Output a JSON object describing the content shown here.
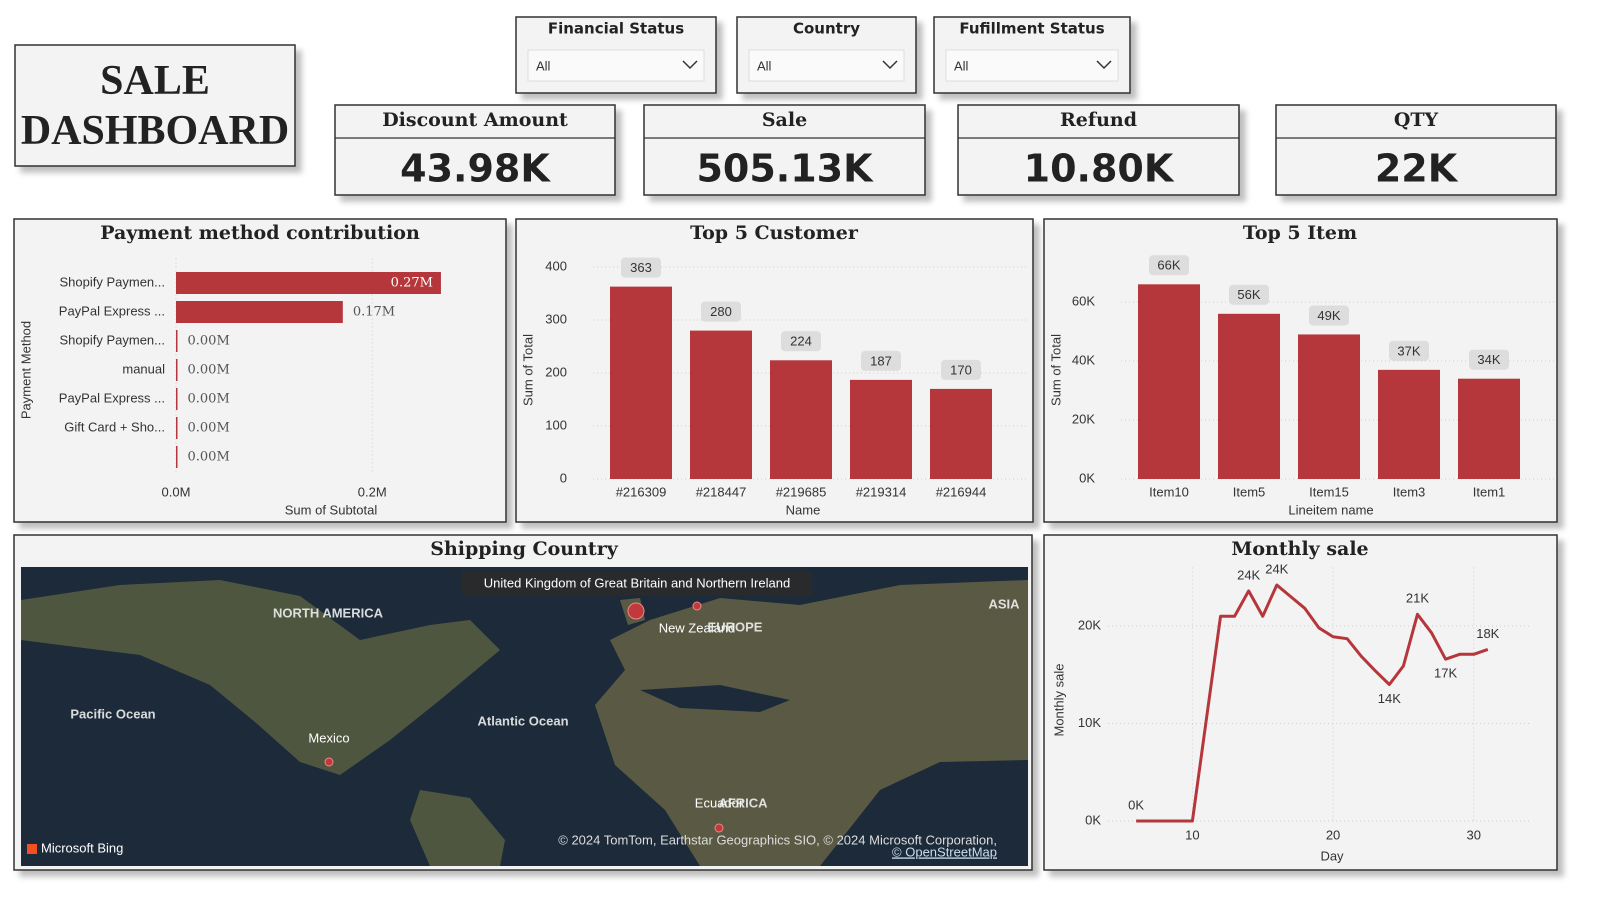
{
  "header": {
    "title": "SALE DASHBOARD"
  },
  "filters": [
    {
      "label": "Financial Status",
      "value": "All"
    },
    {
      "label": "Country",
      "value": "All"
    },
    {
      "label": "Fufillment Status",
      "value": "All"
    }
  ],
  "kpis": [
    {
      "label": "Discount Amount",
      "value": "43.98K"
    },
    {
      "label": "Sale",
      "value": "505.13K"
    },
    {
      "label": "Refund",
      "value": "10.80K"
    },
    {
      "label": "QTY",
      "value": "22K"
    }
  ],
  "map": {
    "title": "Shipping Country",
    "locations": [
      "United Kingdom of Great Britain and Northern Ireland",
      "New Zealand",
      "Mexico",
      "Ecuador"
    ],
    "region_labels": [
      "NORTH AMERICA",
      "EUROPE",
      "ASIA",
      "Pacific Ocean",
      "Atlantic Ocean",
      "AFRICA"
    ],
    "logo": "Microsoft Bing",
    "attribution": "© 2024 TomTom, Earthstar Geographics SIO, © 2024 Microsoft Corporation,",
    "attribution_link": "© OpenStreetMap"
  },
  "chart_data": [
    {
      "type": "hbar",
      "title": "Payment method contribution",
      "categories": [
        "Shopify Paymen...",
        "PayPal Express ...",
        "Shopify Paymen...",
        "manual",
        "PayPal Express ...",
        "Gift Card + Sho...",
        null
      ],
      "values": [
        0.27,
        0.17,
        0,
        0,
        0,
        0,
        0
      ],
      "value_labels": [
        "0.27M",
        "0.17M",
        "0.00M",
        "0.00M",
        "0.00M",
        "0.00M",
        "0.00M"
      ],
      "color": "#b5373b",
      "xlim": [
        0,
        0.32
      ],
      "xticks": [
        {
          "value": 0,
          "label": "0.0M"
        },
        {
          "value": 0.2,
          "label": "0.2M"
        }
      ],
      "x_label": "Sum of Subtotal",
      "y_label": "Payment Method",
      "grid": true
    },
    {
      "type": "bar",
      "title": "Top 5 Customer",
      "categories": [
        "#216309",
        "#218447",
        "#219685",
        "#219314",
        "#216944"
      ],
      "values": [
        363,
        280,
        224,
        187,
        170
      ],
      "color": "#b5373b",
      "ylim": [
        0,
        400
      ],
      "yticks": [
        0,
        100,
        200,
        300,
        400
      ],
      "x_label": "Name",
      "y_label": "Sum of Total",
      "grid": true
    },
    {
      "type": "bar",
      "title": "Top 5 Item",
      "categories": [
        "Item10",
        "Item5",
        "Item15",
        "Item3",
        "Item1"
      ],
      "values": [
        66000,
        56000,
        49000,
        37000,
        34000
      ],
      "value_labels": [
        "66K",
        "56K",
        "49K",
        "37K",
        "34K"
      ],
      "color": "#b5373b",
      "ylim": [
        0,
        70000
      ],
      "yticks": [
        {
          "value": 0,
          "label": "0K"
        },
        {
          "value": 20000,
          "label": "20K"
        },
        {
          "value": 40000,
          "label": "40K"
        },
        {
          "value": 60000,
          "label": "60K"
        }
      ],
      "x_label": "Lineitem name",
      "y_label": "Sum of Total",
      "grid": true
    },
    {
      "type": "line",
      "title": "Monthly sale",
      "x": [
        6,
        10,
        12,
        13,
        14,
        15,
        16,
        17,
        18,
        19,
        20,
        21,
        22,
        23,
        24,
        25,
        26,
        27,
        28,
        29,
        30,
        31
      ],
      "values": [
        0,
        0,
        21000,
        21000,
        23600,
        21000,
        24200,
        23000,
        21800,
        19800,
        18900,
        18700,
        16900,
        15400,
        14000,
        15900,
        21200,
        19300,
        16600,
        17100,
        17100,
        17600
      ],
      "value_labels": [
        "0K",
        null,
        null,
        null,
        "24K",
        null,
        "24K",
        null,
        null,
        null,
        null,
        null,
        null,
        null,
        "14K",
        null,
        "21K",
        null,
        "17K",
        null,
        null,
        "18K"
      ],
      "color": "#b5373b",
      "xlim": [
        4,
        34
      ],
      "xticks": [
        10,
        20,
        30
      ],
      "ylim": [
        0,
        26000
      ],
      "yticks": [
        {
          "value": 0,
          "label": "0K"
        },
        {
          "value": 10000,
          "label": "10K"
        },
        {
          "value": 20000,
          "label": "20K"
        }
      ],
      "x_label": "Day",
      "y_label": "Monthly sale",
      "grid": true
    }
  ]
}
